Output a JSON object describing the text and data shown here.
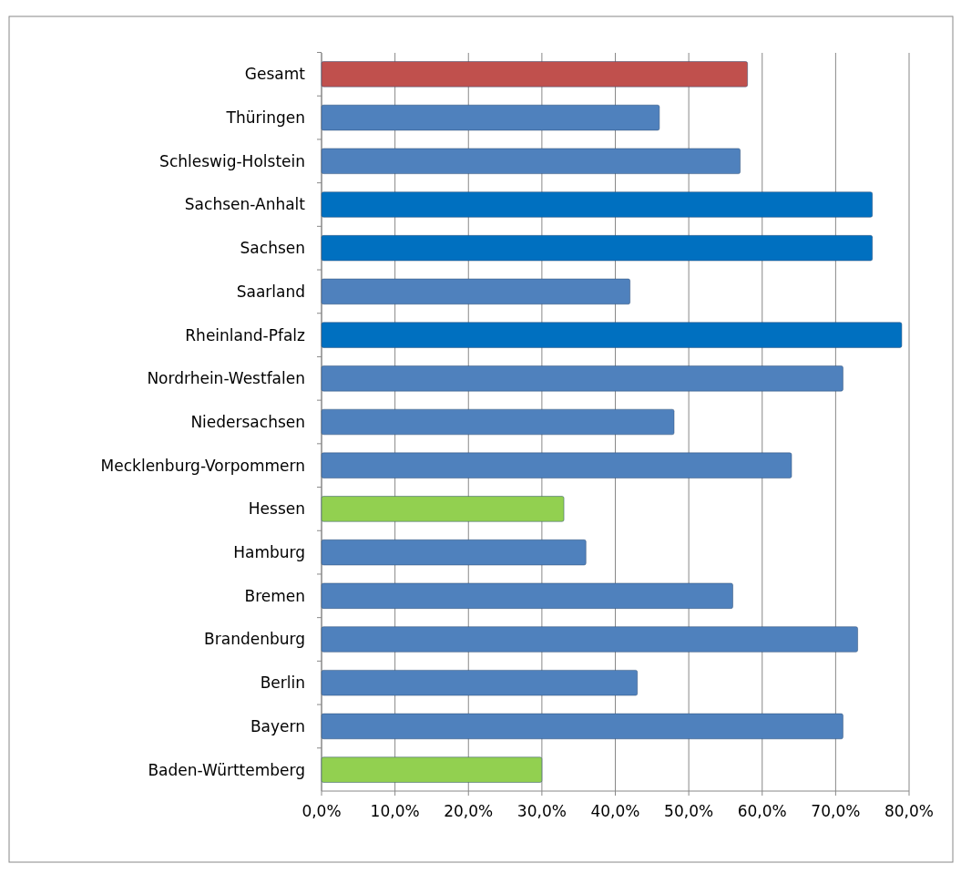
{
  "chart_data": {
    "type": "bar",
    "orientation": "horizontal",
    "categories": [
      "Gesamt",
      "Thüringen",
      "Schleswig-Holstein",
      "Sachsen-Anhalt",
      "Sachsen",
      "Saarland",
      "Rheinland-Pfalz",
      "Nordrhein-Westfalen",
      "Niedersachsen",
      "Mecklenburg-Vorpommern",
      "Hessen",
      "Hamburg",
      "Bremen",
      "Brandenburg",
      "Berlin",
      "Bayern",
      "Baden-Württemberg"
    ],
    "values": [
      58,
      46,
      57,
      75,
      75,
      42,
      79,
      71,
      48,
      64,
      33,
      36,
      56,
      73,
      43,
      71,
      30
    ],
    "colors": [
      "#c0504d",
      "#4f81bd",
      "#4f81bd",
      "#0070c0",
      "#0070c0",
      "#4f81bd",
      "#0070c0",
      "#4f81bd",
      "#4f81bd",
      "#4f81bd",
      "#92d050",
      "#4f81bd",
      "#4f81bd",
      "#4f81bd",
      "#4f81bd",
      "#4f81bd",
      "#92d050"
    ],
    "xlim": [
      0,
      80
    ],
    "xticks": [
      {
        "value": 0,
        "label": "0,0%"
      },
      {
        "value": 10,
        "label": "10,0%"
      },
      {
        "value": 20,
        "label": "20,0%"
      },
      {
        "value": 30,
        "label": "30,0%"
      },
      {
        "value": 40,
        "label": "40,0%"
      },
      {
        "value": 50,
        "label": "50,0%"
      },
      {
        "value": 60,
        "label": "60,0%"
      },
      {
        "value": 70,
        "label": "70,0%"
      },
      {
        "value": 80,
        "label": "80,0%"
      }
    ],
    "grid": "x"
  }
}
